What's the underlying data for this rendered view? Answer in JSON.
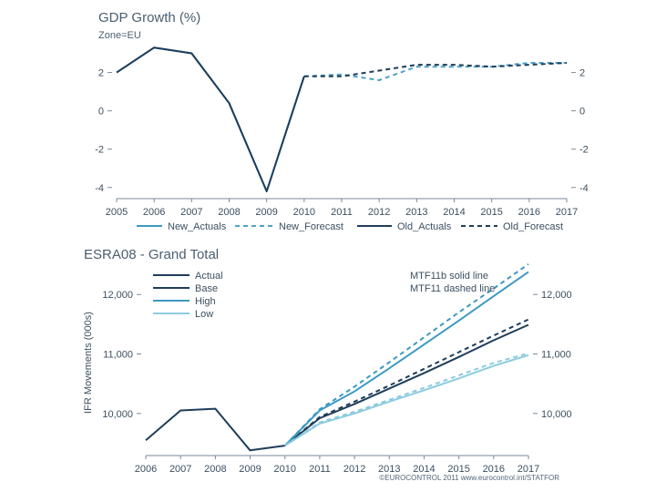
{
  "colors": {
    "new_actuals": "#3d99c2",
    "new_forecast": "#4da3c8",
    "old_actuals": "#1f3d5a",
    "old_forecast": "#1f3d5a",
    "actual": "#1f3d5a",
    "base": "#1f3d5a",
    "high": "#3d99c2",
    "low": "#8ccbe0",
    "axis": "#7a8a99",
    "text": "#3c4f60"
  },
  "chart_data": [
    {
      "type": "line",
      "title": "GDP Growth (%)",
      "subtitle": "Zone=EU",
      "xlabel": "",
      "ylabel": "",
      "x": [
        2005,
        2006,
        2007,
        2008,
        2009,
        2010,
        2011,
        2012,
        2013,
        2014,
        2015,
        2016,
        2017
      ],
      "xlim": [
        2005,
        2017
      ],
      "ylim": [
        -4.2,
        3.5
      ],
      "yticks": [
        2,
        0,
        -2,
        -4
      ],
      "ytick_labels": [
        "2",
        "0",
        "-2",
        "-4"
      ],
      "right_axis": true,
      "grid": false,
      "legend_position": "bottom",
      "series": [
        {
          "name": "New_Actuals",
          "style": "solid",
          "x": [
            2005,
            2006,
            2007,
            2008,
            2009,
            2010
          ],
          "values": [
            2.0,
            3.3,
            3.0,
            0.4,
            -4.2,
            1.8
          ]
        },
        {
          "name": "New_Forecast",
          "style": "dashed",
          "x": [
            2010,
            2011,
            2012,
            2013,
            2014,
            2015,
            2016,
            2017
          ],
          "values": [
            1.8,
            1.9,
            1.6,
            2.3,
            2.3,
            2.3,
            2.5,
            2.5
          ]
        },
        {
          "name": "Old_Actuals",
          "style": "solid",
          "x": [
            2005,
            2006,
            2007,
            2008,
            2009,
            2010
          ],
          "values": [
            2.0,
            3.3,
            3.0,
            0.4,
            -4.2,
            1.8
          ]
        },
        {
          "name": "Old_Forecast",
          "style": "dashed",
          "x": [
            2010,
            2011,
            2012,
            2013,
            2014,
            2015,
            2016,
            2017
          ],
          "values": [
            1.8,
            1.8,
            2.1,
            2.4,
            2.4,
            2.3,
            2.4,
            2.5
          ]
        }
      ],
      "legend": [
        "New_Actuals",
        "New_Forecast",
        "Old_Actuals",
        "Old_Forecast"
      ]
    },
    {
      "type": "line",
      "title": "ESRA08 - Grand Total",
      "xlabel": "",
      "ylabel": "IFR Movements (000s)",
      "x": [
        2006,
        2007,
        2008,
        2009,
        2010,
        2011,
        2012,
        2013,
        2014,
        2015,
        2016,
        2017
      ],
      "xlim": [
        2006,
        2017
      ],
      "ylim": [
        9400,
        12600
      ],
      "yticks": [
        12000,
        11000,
        10000
      ],
      "ytick_labels": [
        "12,000",
        "11,000",
        "10,000"
      ],
      "right_axis": true,
      "grid": false,
      "legend_position": "top-left",
      "note_lines": [
        "MTF11b solid line",
        "MTF11 dashed line"
      ],
      "legend": [
        "Actual",
        "Base",
        "High",
        "Low"
      ],
      "series": [
        {
          "name": "Actual",
          "style": "solid",
          "x": [
            2006,
            2007,
            2008,
            2009,
            2010
          ],
          "values": [
            9550,
            10050,
            10080,
            9380,
            9460
          ]
        },
        {
          "name": "Base",
          "style": "solid",
          "x": [
            2010,
            2011,
            2012,
            2013,
            2014,
            2015,
            2016,
            2017
          ],
          "values": [
            9460,
            9920,
            10160,
            10420,
            10680,
            10950,
            11230,
            11490
          ]
        },
        {
          "name": "Base",
          "style": "dashed",
          "x": [
            2010,
            2011,
            2012,
            2013,
            2014,
            2015,
            2016,
            2017
          ],
          "values": [
            9460,
            9940,
            10200,
            10470,
            10750,
            11030,
            11310,
            11580
          ]
        },
        {
          "name": "High",
          "style": "solid",
          "x": [
            2010,
            2011,
            2012,
            2013,
            2014,
            2015,
            2016,
            2017
          ],
          "values": [
            9460,
            10050,
            10370,
            10760,
            11160,
            11560,
            11970,
            12380
          ]
        },
        {
          "name": "High",
          "style": "dashed",
          "x": [
            2010,
            2011,
            2012,
            2013,
            2014,
            2015,
            2016,
            2017
          ],
          "values": [
            9460,
            10070,
            10450,
            10860,
            11280,
            11700,
            12100,
            12510
          ]
        },
        {
          "name": "Low",
          "style": "solid",
          "x": [
            2010,
            2011,
            2012,
            2013,
            2014,
            2015,
            2016,
            2017
          ],
          "values": [
            9460,
            9830,
            10000,
            10200,
            10390,
            10590,
            10800,
            10980
          ]
        },
        {
          "name": "Low",
          "style": "dashed",
          "x": [
            2010,
            2011,
            2012,
            2013,
            2014,
            2015,
            2016,
            2017
          ],
          "values": [
            9460,
            9850,
            10030,
            10230,
            10430,
            10640,
            10850,
            11010
          ]
        }
      ],
      "credit": "©EUROCONTROL 2011 www.eurocontrol.int/STATFOR"
    }
  ]
}
